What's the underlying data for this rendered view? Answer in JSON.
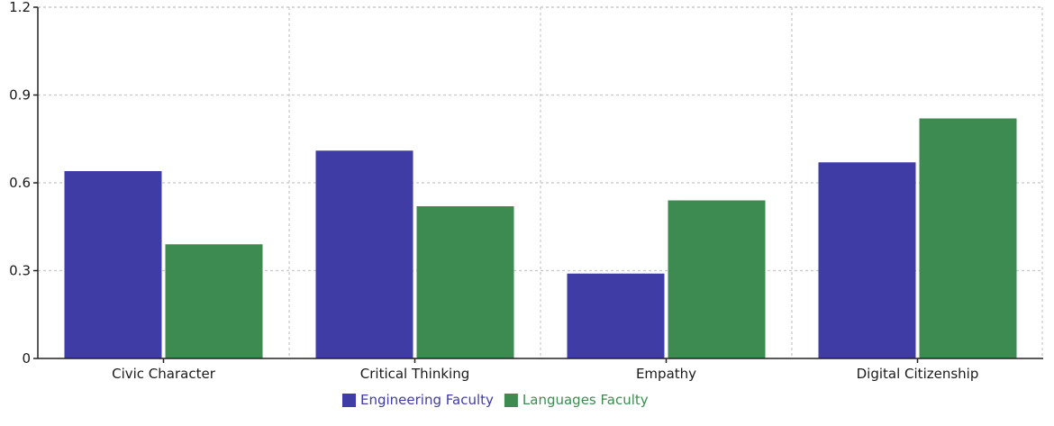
{
  "chart_data": {
    "type": "bar",
    "categories": [
      "Civic Character",
      "Critical Thinking",
      "Empathy",
      "Digital Citizenship"
    ],
    "series": [
      {
        "name": "Engineering Faculty",
        "values": [
          0.64,
          0.71,
          0.29,
          0.67
        ],
        "color": "#3f3ca6"
      },
      {
        "name": "Languages Faculty",
        "values": [
          0.39,
          0.52,
          0.54,
          0.82
        ],
        "color": "#3d8b50"
      }
    ],
    "title": "",
    "xlabel": "",
    "ylabel": "",
    "ylim": [
      0,
      1.2
    ],
    "yticks": [
      "0",
      "0.3",
      "0.6",
      "0.9",
      "1.2"
    ],
    "grid": true,
    "legend_position": "bottom-center"
  }
}
